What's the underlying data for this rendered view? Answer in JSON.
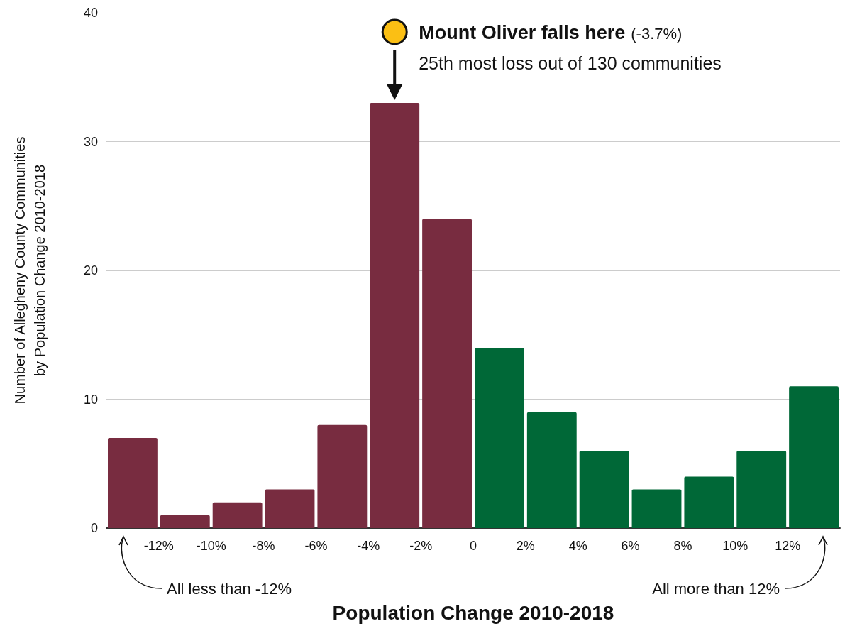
{
  "chart_data": {
    "type": "histogram",
    "xlabel": "Population Change 2010-2018",
    "ylabel": "Number of Allegheny County Communities\nby Population Change 2010-2018",
    "bins": [
      -14,
      -12,
      -10,
      -8,
      -6,
      -4,
      -2,
      0,
      2,
      4,
      6,
      8,
      10,
      12,
      14
    ],
    "values": [
      7,
      1,
      2,
      3,
      8,
      33,
      24,
      14,
      9,
      6,
      3,
      4,
      6,
      11
    ],
    "colors": [
      "#782c40",
      "#782c40",
      "#782c40",
      "#782c40",
      "#782c40",
      "#782c40",
      "#782c40",
      "#006837",
      "#006837",
      "#006837",
      "#006837",
      "#006837",
      "#006837",
      "#006837"
    ],
    "xlim": [
      -14,
      14
    ],
    "xticks": [
      {
        "value": -12,
        "label": "-12%"
      },
      {
        "value": -10,
        "label": "-10%"
      },
      {
        "value": -8,
        "label": "-8%"
      },
      {
        "value": -6,
        "label": "-6%"
      },
      {
        "value": -4,
        "label": "-4%"
      },
      {
        "value": -2,
        "label": "-2%"
      },
      {
        "value": 0,
        "label": "0"
      },
      {
        "value": 2,
        "label": "2%"
      },
      {
        "value": 4,
        "label": "4%"
      },
      {
        "value": 6,
        "label": "6%"
      },
      {
        "value": 8,
        "label": "8%"
      },
      {
        "value": 10,
        "label": "10%"
      },
      {
        "value": 12,
        "label": "12%"
      }
    ],
    "ylim": [
      0,
      40
    ],
    "yticks": [
      0,
      10,
      20,
      30,
      40
    ],
    "grid": "y",
    "annotations": [
      "Mount Oliver falls here",
      "(-3.7%)",
      "25th most loss out of 130 communities",
      "All less than -12%",
      "All more than 12%"
    ]
  }
}
